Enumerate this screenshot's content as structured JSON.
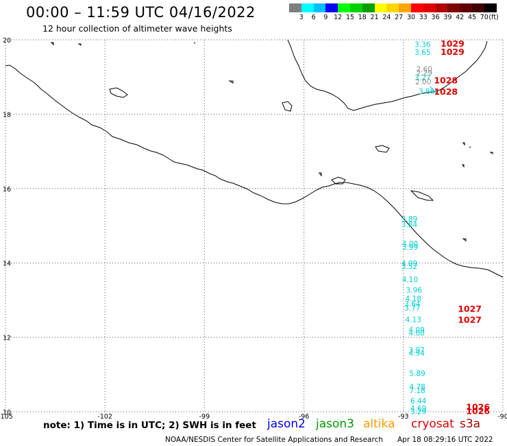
{
  "header": {
    "title": "00:00 – 11:59 UTC 04/16/2022",
    "subtitle": "12 hour collection of altimeter wave heights"
  },
  "colorbar": {
    "colors": [
      "#7f7f7f",
      "#00ffff",
      "#00bfff",
      "#0000ff",
      "#00ff00",
      "#00d000",
      "#00a000",
      "#ffff00",
      "#ffd700",
      "#ffa500",
      "#ff0000",
      "#e00000",
      "#b00000",
      "#800000",
      "#600000",
      "#400000",
      "#000000"
    ],
    "ticks": [
      "3",
      "6",
      "9",
      "12",
      "15",
      "18",
      "21",
      "24",
      "27",
      "30",
      "33",
      "36",
      "39",
      "42",
      "45",
      "70",
      "(ft)"
    ]
  },
  "axes": {
    "lon_labels": [
      "-105",
      "-102",
      "-99",
      "-96",
      "-93",
      "-90"
    ],
    "lat_labels": [
      "20",
      "18",
      "16",
      "14",
      "12",
      "10"
    ]
  },
  "observations": [
    {
      "lon": -92.42,
      "lat": 19.81,
      "text": "3.36",
      "color": "#00ced1"
    },
    {
      "lon": -92.42,
      "lat": 19.59,
      "text": "3.65",
      "color": "#00ced1"
    },
    {
      "lon": -92.37,
      "lat": 19.14,
      "text": "2.60",
      "color": "#8c8c8c"
    },
    {
      "lon": -92.37,
      "lat": 19.04,
      "text": "2.29",
      "color": "#8c8c8c"
    },
    {
      "lon": -92.42,
      "lat": 18.91,
      "text": "3.27",
      "color": "#00ced1"
    },
    {
      "lon": -92.4,
      "lat": 18.8,
      "text": "2.00",
      "color": "#8c8c8c"
    },
    {
      "lon": -92.3,
      "lat": 18.54,
      "text": "3.86",
      "color": "#00ced1"
    },
    {
      "lon": -92.82,
      "lat": 15.11,
      "text": "3.89",
      "color": "#00ced1"
    },
    {
      "lon": -92.82,
      "lat": 14.96,
      "text": "3.84",
      "color": "#00ced1"
    },
    {
      "lon": -92.8,
      "lat": 14.45,
      "text": "4.00",
      "color": "#00ced1"
    },
    {
      "lon": -92.8,
      "lat": 14.35,
      "text": "3.99",
      "color": "#00ced1"
    },
    {
      "lon": -92.82,
      "lat": 13.92,
      "text": "4.09",
      "color": "#00ced1"
    },
    {
      "lon": -92.82,
      "lat": 13.84,
      "text": "3.52",
      "color": "#00ced1"
    },
    {
      "lon": -92.8,
      "lat": 13.49,
      "text": "4.10",
      "color": "#00ced1"
    },
    {
      "lon": -92.68,
      "lat": 13.2,
      "text": "3.96",
      "color": "#00ced1"
    },
    {
      "lon": -92.7,
      "lat": 12.97,
      "text": "4.18",
      "color": "#00ced1"
    },
    {
      "lon": -92.73,
      "lat": 12.83,
      "text": "3.64",
      "color": "#00ced1"
    },
    {
      "lon": -92.73,
      "lat": 12.72,
      "text": "3.77",
      "color": "#00ced1"
    },
    {
      "lon": -92.7,
      "lat": 12.41,
      "text": "4.13",
      "color": "#00ced1"
    },
    {
      "lon": -92.6,
      "lat": 12.13,
      "text": "4.09",
      "color": "#00ced1"
    },
    {
      "lon": -92.6,
      "lat": 12.05,
      "text": "4.00",
      "color": "#00ced1"
    },
    {
      "lon": -92.6,
      "lat": 11.59,
      "text": "3.97",
      "color": "#00ced1"
    },
    {
      "lon": -92.6,
      "lat": 11.5,
      "text": "4.94",
      "color": "#00ced1"
    },
    {
      "lon": -92.58,
      "lat": 10.96,
      "text": "5.89",
      "color": "#00ced1"
    },
    {
      "lon": -92.58,
      "lat": 10.6,
      "text": "4.78",
      "color": "#00ced1"
    },
    {
      "lon": -92.58,
      "lat": 10.5,
      "text": "7.18",
      "color": "#00ced1"
    },
    {
      "lon": -92.55,
      "lat": 10.22,
      "text": "6.44",
      "color": "#00ced1"
    },
    {
      "lon": -92.55,
      "lat": 10.02,
      "text": "4.69",
      "color": "#00ced1"
    },
    {
      "lon": -92.55,
      "lat": 9.94,
      "text": "3.29",
      "color": "#00ced1"
    }
  ],
  "pressures": [
    {
      "lon": -91.52,
      "lat": 19.82,
      "text": "1029"
    },
    {
      "lon": -91.52,
      "lat": 19.59,
      "text": "1029"
    },
    {
      "lon": -91.72,
      "lat": 18.83,
      "text": "1028"
    },
    {
      "lon": -91.72,
      "lat": 18.52,
      "text": "1028"
    },
    {
      "lon": -91.0,
      "lat": 12.68,
      "text": "1027"
    },
    {
      "lon": -91.0,
      "lat": 12.39,
      "text": "1027"
    },
    {
      "lon": -90.75,
      "lat": 10.05,
      "text": "1026"
    },
    {
      "lon": -90.75,
      "lat": 9.94,
      "text": "1026"
    }
  ],
  "footer": {
    "note": "note:  1) Time is in UTC;  2) SWH is in feet",
    "legend": [
      {
        "label": "jason2",
        "color": "#0000ee"
      },
      {
        "label": "jason3",
        "color": "#009900"
      },
      {
        "label": "altika",
        "color": "#ff9900"
      },
      {
        "label": "cryosat",
        "color": "#dd0000"
      },
      {
        "label": "s3a",
        "color": "#aa0000"
      }
    ],
    "credit": "NOAA/NESDIS Center for Satellite Applications and Research",
    "timestamp": "Apr 18 08:29:16 UTC 2022"
  }
}
